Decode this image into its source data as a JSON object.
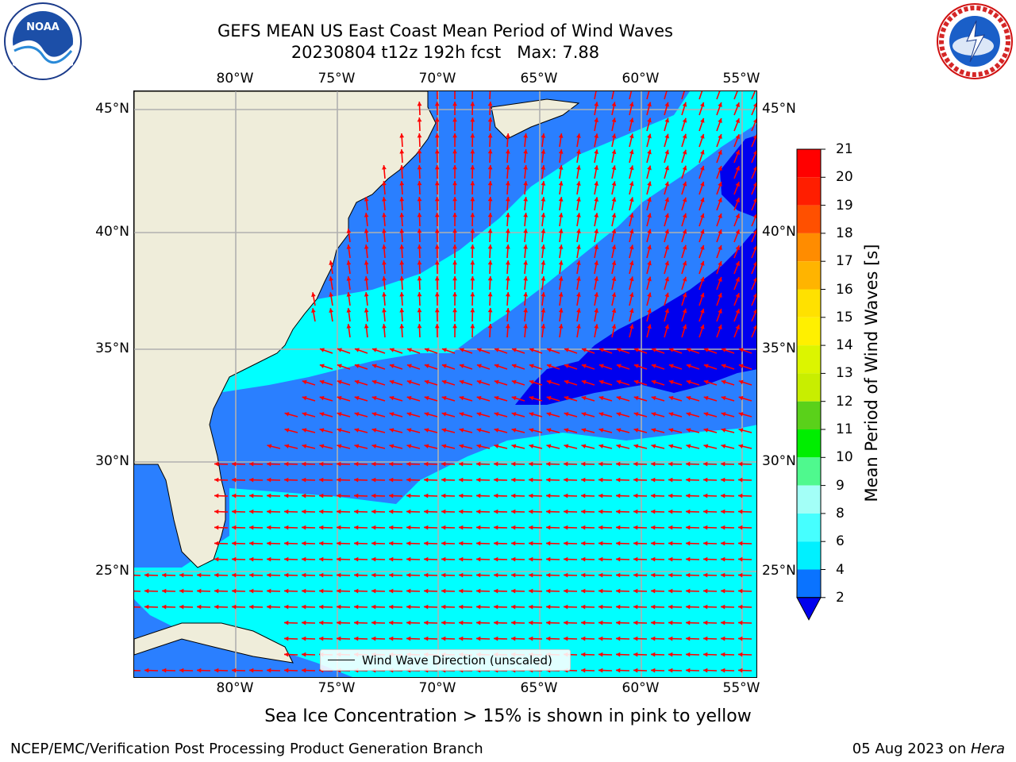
{
  "title": {
    "line1": "GEFS MEAN US East Coast Mean Period of Wind Waves",
    "line2": "20230804 t12z 192h fcst   Max: 7.88"
  },
  "map": {
    "lon_ticks": [
      "80°W",
      "75°W",
      "70°W",
      "65°W",
      "60°W",
      "55°W"
    ],
    "lat_ticks": [
      "45°N",
      "40°N",
      "35°N",
      "30°N",
      "25°N"
    ],
    "lon_range": [
      -85,
      -54.3
    ],
    "lat_range": [
      20.5,
      45.8
    ],
    "grid": true,
    "land_color": "#efedda",
    "arrow_color": "#ff0000",
    "legend_text": "Wind Wave Direction (unscaled)",
    "legend_placement": "bottom-center"
  },
  "colorbar": {
    "label": "Mean Period of Wind Waves [s]",
    "ticks": [
      "2",
      "4",
      "6",
      "8",
      "9",
      "10",
      "11",
      "12",
      "13",
      "14",
      "15",
      "16",
      "17",
      "18",
      "19",
      "20",
      "21"
    ],
    "colors": [
      "#0000ee",
      "#0a73ff",
      "#00f0ff",
      "#46ffff",
      "#a3fff7",
      "#4ff98e",
      "#00ee00",
      "#5ad11a",
      "#c8ee00",
      "#dcf500",
      "#fff000",
      "#ffe100",
      "#ffb400",
      "#ff8c00",
      "#ff5000",
      "#ff1e00",
      "#ff0000"
    ],
    "under_color": "#0000ee"
  },
  "period_colors": {
    "lt2": "#0000ee",
    "p2_4": "#2a7fff",
    "p4_6": "#00ffff",
    "p6_8": "#46ffff"
  },
  "subnote": "Sea Ice Concentration > 15% is shown in pink to yellow",
  "footer": {
    "left": "NCEP/EMC/Verification Post Processing Product Generation Branch",
    "right_date": "05 Aug 2023 on ",
    "right_host": "Hera"
  },
  "logos": {
    "noaa_text": "NOAA",
    "nws_text": "NATIONAL WEATHER SERVICE"
  }
}
